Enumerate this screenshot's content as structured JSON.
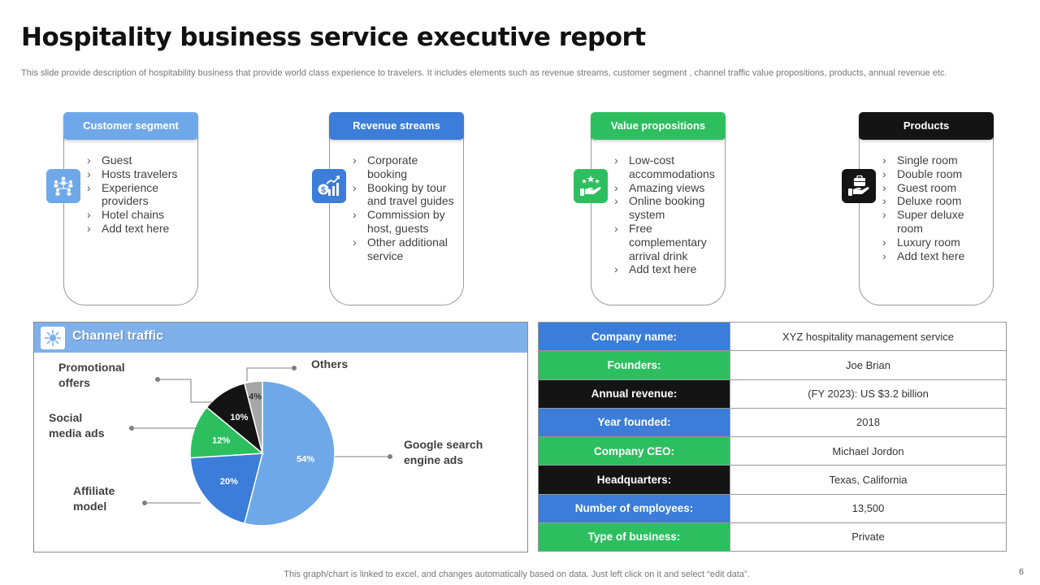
{
  "title": "Hospitality business service executive report",
  "subtitle": "This slide provide description of hospitability business that provide world class experience to travelers. It includes elements such as revenue streams, customer segment , channel traffic value propositions, products, annual revenue etc.",
  "colors": {
    "light_blue": "#6fa8e8",
    "blue": "#3b7dd8",
    "green": "#2dbf5f",
    "black": "#141414",
    "gray": "#a6a6a6"
  },
  "cards": [
    {
      "title": "Customer segment",
      "color": "#6fa8e8",
      "icon": "people-network-icon",
      "items": [
        "Guest",
        "Hosts travelers",
        "Experience providers",
        "Hotel chains",
        "Add text here"
      ]
    },
    {
      "title": "Revenue streams",
      "color": "#3b7dd8",
      "icon": "money-growth-icon",
      "items": [
        "Corporate booking",
        "Booking by tour and travel guides",
        "Commission by host, guests",
        "Other additional service"
      ]
    },
    {
      "title": "Value propositions",
      "color": "#2dbf5f",
      "icon": "hand-stars-icon",
      "items": [
        "Low-cost accommodations",
        "Amazing views",
        "Online booking system",
        "Free complementary arrival drink",
        "Add text here"
      ]
    },
    {
      "title": "Products",
      "color": "#141414",
      "icon": "hand-briefcase-icon",
      "items": [
        "Single room",
        "Double room",
        "Guest room",
        "Deluxe room",
        "Super deluxe room",
        "Luxury room",
        "Add text here"
      ]
    }
  ],
  "channel": {
    "title": "Channel traffic",
    "icon": "network-hub-icon"
  },
  "chart_data": {
    "type": "pie",
    "title": "Channel traffic",
    "unit": "%",
    "slices": [
      {
        "label": "Google search engine ads",
        "value": 54,
        "color": "#6fa8e8"
      },
      {
        "label": "Affiliate model",
        "value": 20,
        "color": "#3b7dd8"
      },
      {
        "label": "Social media ads",
        "value": 12,
        "color": "#2dbf5f"
      },
      {
        "label": "Promotional offers",
        "value": 10,
        "color": "#141414"
      },
      {
        "label": "Others",
        "value": 4,
        "color": "#a6a6a6"
      }
    ]
  },
  "company_info": [
    {
      "label": "Company name:",
      "value": "XYZ hospitality management service",
      "color": "#3b7dd8"
    },
    {
      "label": "Founders:",
      "value": "Joe Brian",
      "color": "#2dbf5f"
    },
    {
      "label": "Annual revenue:",
      "value": "(FY 2023): US $3.2 billion",
      "color": "#141414"
    },
    {
      "label": "Year founded:",
      "value": "2018",
      "color": "#3b7dd8"
    },
    {
      "label": "Company CEO:",
      "value": "Michael Jordon",
      "color": "#2dbf5f"
    },
    {
      "label": "Headquarters:",
      "value": "Texas, California",
      "color": "#141414"
    },
    {
      "label": "Number of employees:",
      "value": "13,500",
      "color": "#3b7dd8"
    },
    {
      "label": "Type of business:",
      "value": "Private",
      "color": "#2dbf5f"
    }
  ],
  "footer": "This graph/chart is linked to excel, and changes automatically based on data. Just left click on it and select “edit data”.",
  "page_number": "6"
}
